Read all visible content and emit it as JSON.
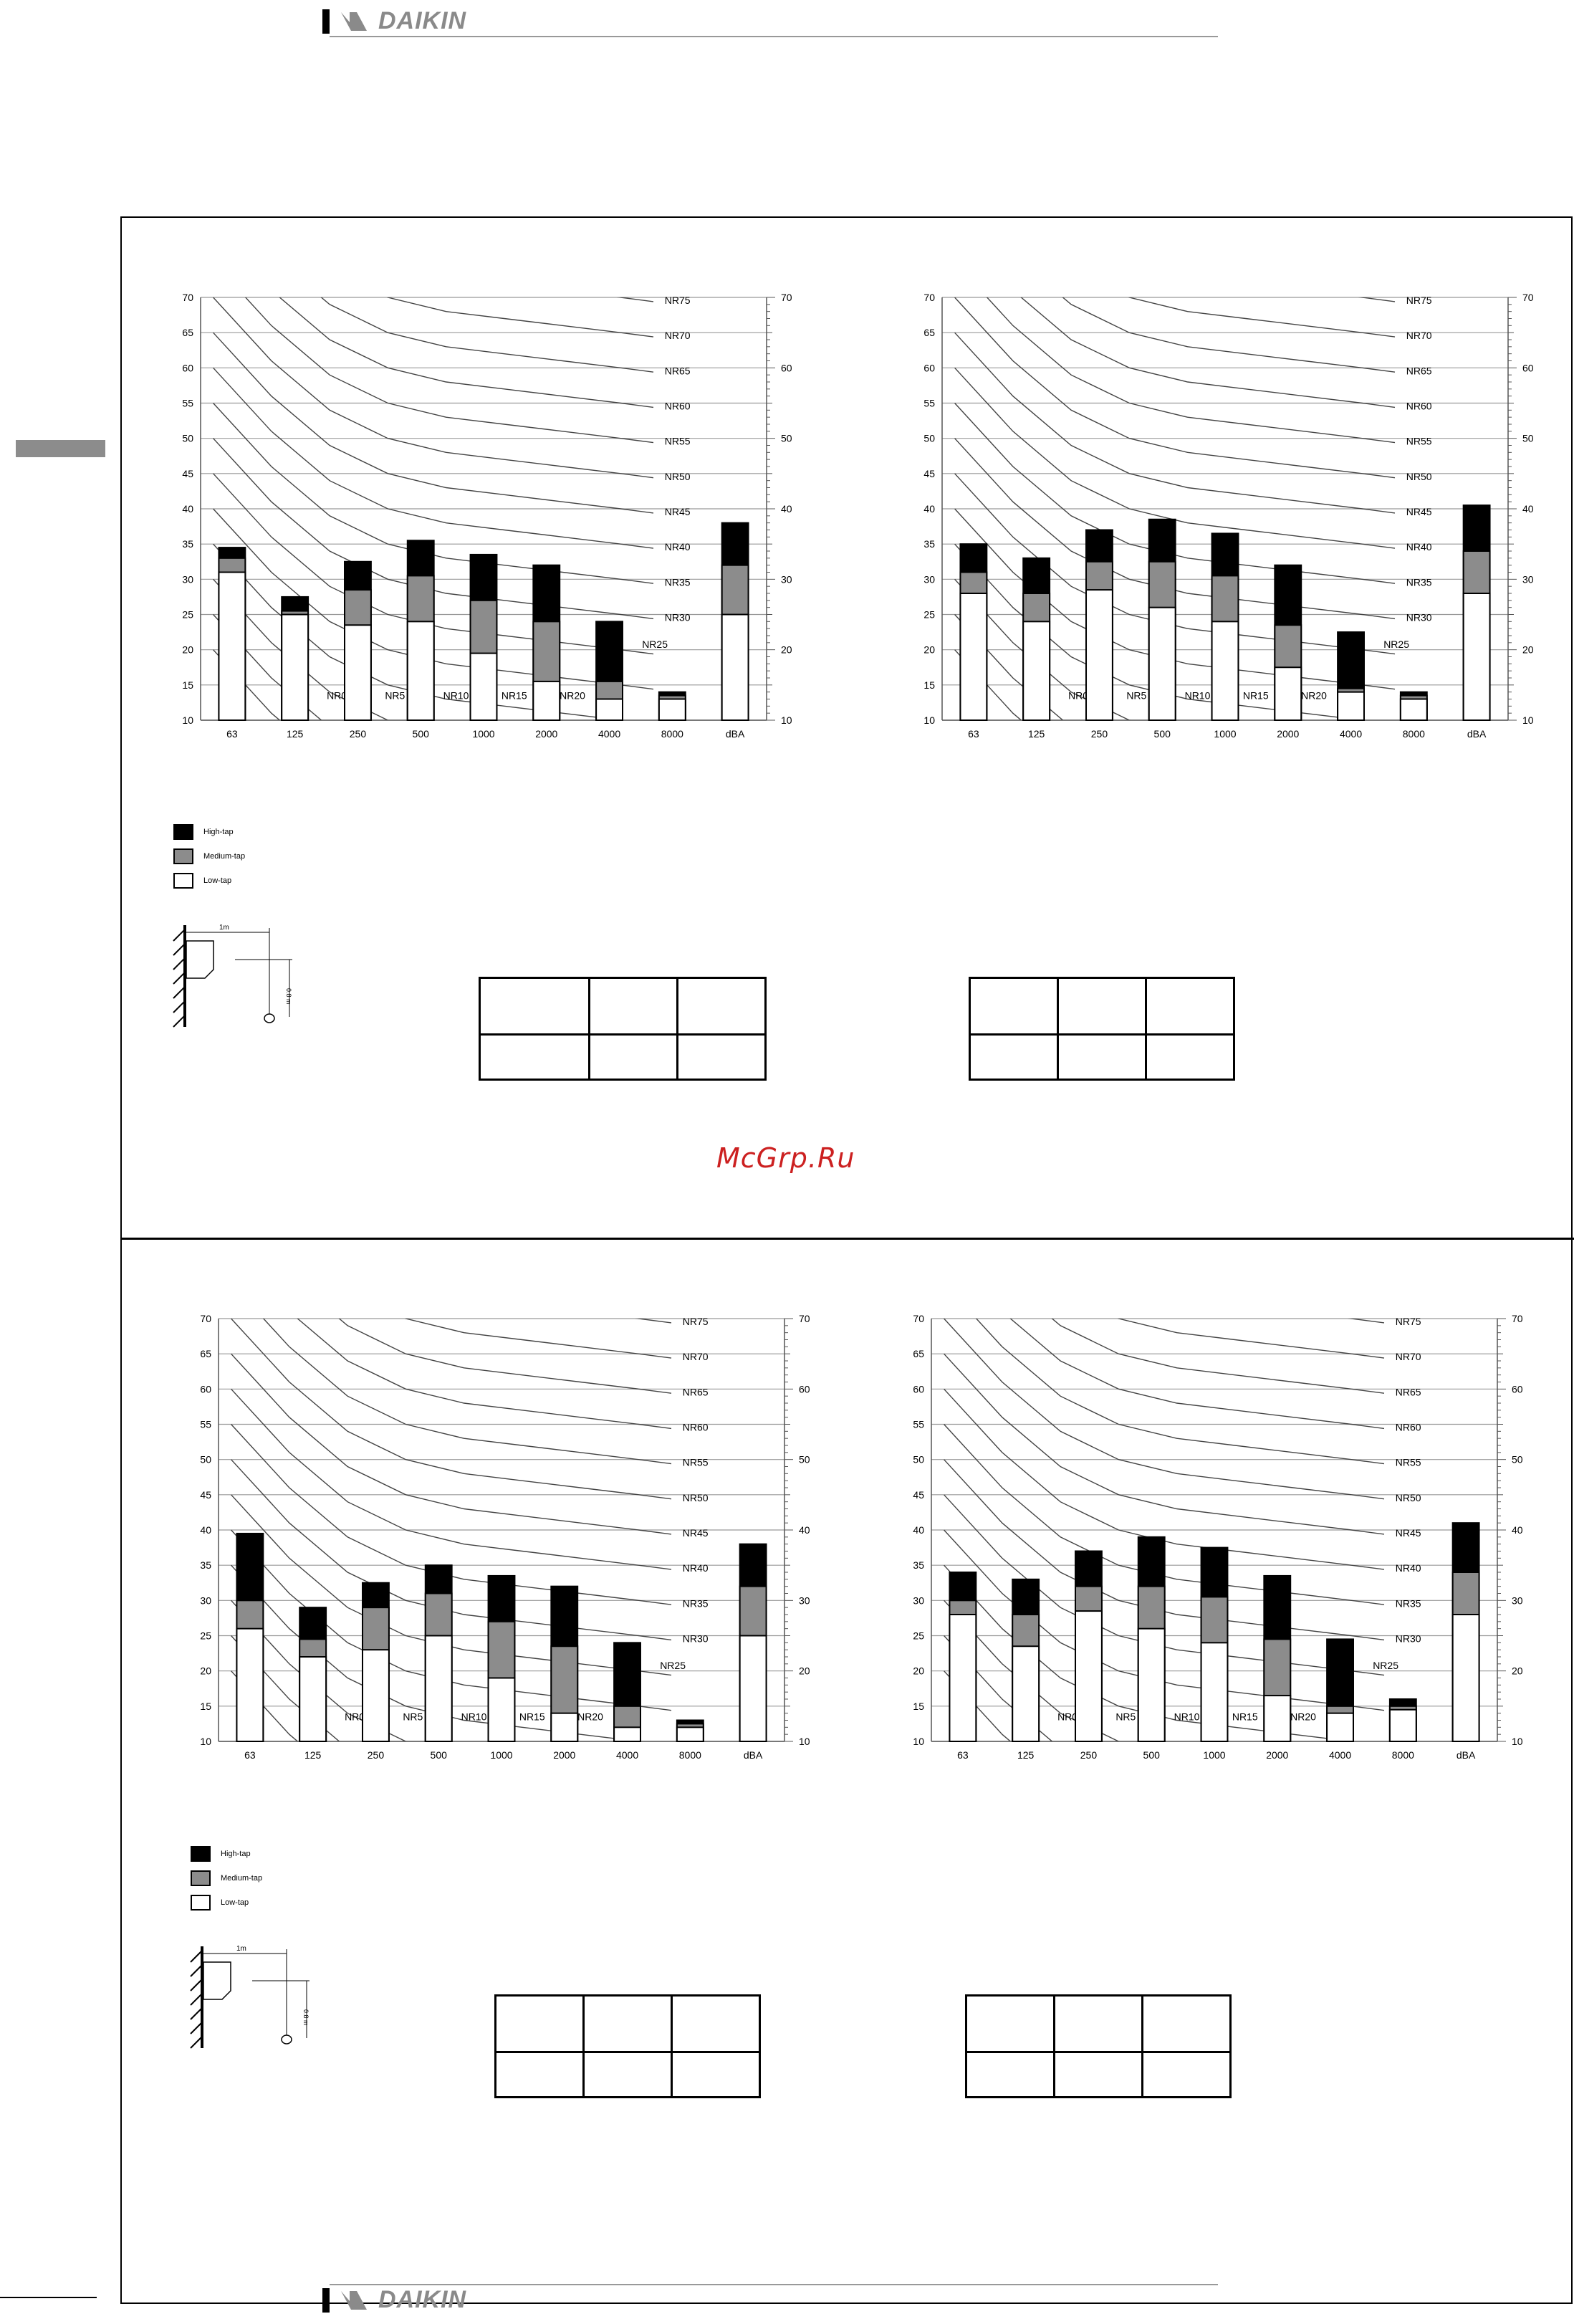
{
  "header": {
    "brand": "DAIKIN"
  },
  "footer": {
    "brand": "DAIKIN"
  },
  "watermark": "McGrp.Ru",
  "legend": {
    "items": [
      {
        "label": "High-tap",
        "color": "#000000"
      },
      {
        "label": "Medium-tap",
        "color": "#8c8c8c"
      },
      {
        "label": "Low-tap",
        "color": "#ffffff"
      }
    ]
  },
  "diagram": {
    "distance_label": "1m",
    "height_label": "0.8 m"
  },
  "chart_data": [
    {
      "type": "bar",
      "categories": [
        "63",
        "125",
        "250",
        "500",
        "1000",
        "2000",
        "4000",
        "8000",
        "dBA"
      ],
      "ylim": [
        10,
        70
      ],
      "y_ticks": [
        10,
        15,
        20,
        25,
        30,
        35,
        40,
        45,
        50,
        55,
        60,
        65,
        70
      ],
      "right_ticks": [
        10,
        20,
        30,
        40,
        50,
        60,
        70
      ],
      "grid": true,
      "nr_curves": [
        "NR75",
        "NR70",
        "NR65",
        "NR60",
        "NR55",
        "NR50",
        "NR45",
        "NR40",
        "NR35",
        "NR30",
        "NR25",
        "NR20",
        "NR15",
        "NR10",
        "NR5",
        "NR0"
      ],
      "series": [
        {
          "name": "High-tap",
          "values": [
            34.5,
            27.5,
            32.5,
            35.5,
            33.5,
            32,
            24,
            14,
            38
          ]
        },
        {
          "name": "Medium-tap",
          "values": [
            33,
            25.5,
            28.5,
            30.5,
            27,
            24,
            15.5,
            13.5,
            32
          ]
        },
        {
          "name": "Low-tap",
          "values": [
            31,
            25,
            23.5,
            24,
            19.5,
            15.5,
            13,
            13,
            25
          ]
        }
      ]
    },
    {
      "type": "bar",
      "categories": [
        "63",
        "125",
        "250",
        "500",
        "1000",
        "2000",
        "4000",
        "8000",
        "dBA"
      ],
      "ylim": [
        10,
        70
      ],
      "y_ticks": [
        10,
        15,
        20,
        25,
        30,
        35,
        40,
        45,
        50,
        55,
        60,
        65,
        70
      ],
      "right_ticks": [
        10,
        20,
        30,
        40,
        50,
        60,
        70
      ],
      "grid": true,
      "nr_curves": [
        "NR75",
        "NR70",
        "NR65",
        "NR60",
        "NR55",
        "NR50",
        "NR45",
        "NR40",
        "NR35",
        "NR30",
        "NR25",
        "NR20",
        "NR15",
        "NR10",
        "NR5",
        "NR0"
      ],
      "series": [
        {
          "name": "High-tap",
          "values": [
            35,
            33,
            37,
            38.5,
            36.5,
            32,
            22.5,
            14,
            40.5
          ]
        },
        {
          "name": "Medium-tap",
          "values": [
            31,
            28,
            32.5,
            32.5,
            30.5,
            23.5,
            14.5,
            13.5,
            34
          ]
        },
        {
          "name": "Low-tap",
          "values": [
            28,
            24,
            28.5,
            26,
            24,
            17.5,
            14,
            13,
            28
          ]
        }
      ]
    },
    {
      "type": "bar",
      "categories": [
        "63",
        "125",
        "250",
        "500",
        "1000",
        "2000",
        "4000",
        "8000",
        "dBA"
      ],
      "ylim": [
        10,
        70
      ],
      "y_ticks": [
        10,
        15,
        20,
        25,
        30,
        35,
        40,
        45,
        50,
        55,
        60,
        65,
        70
      ],
      "right_ticks": [
        10,
        20,
        30,
        40,
        50,
        60,
        70
      ],
      "grid": true,
      "nr_curves": [
        "NR75",
        "NR70",
        "NR65",
        "NR60",
        "NR55",
        "NR50",
        "NR45",
        "NR40",
        "NR35",
        "NR30",
        "NR25",
        "NR20",
        "NR15",
        "NR10",
        "NR5",
        "NR0"
      ],
      "series": [
        {
          "name": "High-tap",
          "values": [
            39.5,
            29,
            32.5,
            35,
            33.5,
            32,
            24,
            13,
            38
          ]
        },
        {
          "name": "Medium-tap",
          "values": [
            30,
            24.5,
            29,
            31,
            27,
            23.5,
            15,
            12.5,
            32
          ]
        },
        {
          "name": "Low-tap",
          "values": [
            26,
            22,
            23,
            25,
            19,
            14,
            12,
            12,
            25
          ]
        }
      ]
    },
    {
      "type": "bar",
      "categories": [
        "63",
        "125",
        "250",
        "500",
        "1000",
        "2000",
        "4000",
        "8000",
        "dBA"
      ],
      "ylim": [
        10,
        70
      ],
      "y_ticks": [
        10,
        15,
        20,
        25,
        30,
        35,
        40,
        45,
        50,
        55,
        60,
        65,
        70
      ],
      "right_ticks": [
        10,
        20,
        30,
        40,
        50,
        60,
        70
      ],
      "grid": true,
      "nr_curves": [
        "NR75",
        "NR70",
        "NR65",
        "NR60",
        "NR55",
        "NR50",
        "NR45",
        "NR40",
        "NR35",
        "NR30",
        "NR25",
        "NR20",
        "NR15",
        "NR10",
        "NR5",
        "NR0"
      ],
      "series": [
        {
          "name": "High-tap",
          "values": [
            34,
            33,
            37,
            39,
            37.5,
            33.5,
            24.5,
            16,
            41
          ]
        },
        {
          "name": "Medium-tap",
          "values": [
            30,
            28,
            32,
            32,
            30.5,
            24.5,
            15,
            15,
            34
          ]
        },
        {
          "name": "Low-tap",
          "values": [
            28,
            23.5,
            28.5,
            26,
            24,
            16.5,
            14,
            14.5,
            28
          ]
        }
      ]
    }
  ]
}
